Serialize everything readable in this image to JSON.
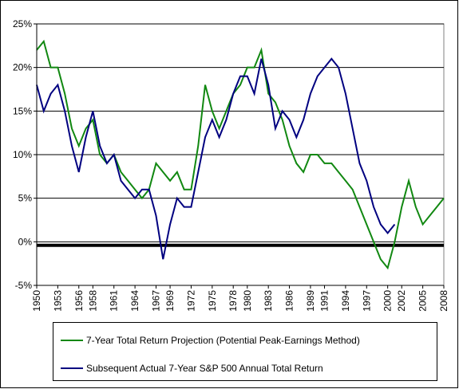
{
  "chart_data": {
    "type": "line",
    "x": [
      1950,
      1951,
      1952,
      1953,
      1954,
      1955,
      1956,
      1957,
      1958,
      1959,
      1960,
      1961,
      1962,
      1963,
      1964,
      1965,
      1966,
      1967,
      1968,
      1969,
      1970,
      1971,
      1972,
      1973,
      1974,
      1975,
      1976,
      1977,
      1978,
      1979,
      1980,
      1981,
      1982,
      1983,
      1984,
      1985,
      1986,
      1987,
      1988,
      1989,
      1990,
      1991,
      1992,
      1993,
      1994,
      1995,
      1996,
      1997,
      1998,
      1999,
      2000,
      2001,
      2002,
      2003,
      2004,
      2005,
      2006,
      2007,
      2008
    ],
    "series": [
      {
        "name": "7-Year Total Return Projection (Potential Peak-Earnings Method)",
        "color": "#118811",
        "values": [
          22,
          23,
          20,
          20,
          17,
          13,
          11,
          13,
          14,
          10,
          9,
          10,
          8,
          7,
          6,
          5,
          6,
          9,
          8,
          7,
          8,
          6,
          6,
          11,
          18,
          15,
          13,
          15,
          17,
          18,
          20,
          20,
          22,
          17,
          16,
          14,
          11,
          9,
          8,
          10,
          10,
          9,
          9,
          8,
          7,
          6,
          4,
          2,
          0,
          -2,
          -3,
          0,
          4,
          7,
          4,
          2,
          3,
          4,
          5
        ]
      },
      {
        "name": "Subsequent Actual 7-Year S&P 500 Annual Total Return",
        "color": "#000080",
        "values": [
          18,
          15,
          17,
          18,
          15,
          11,
          8,
          12,
          15,
          11,
          9,
          10,
          7,
          6,
          5,
          6,
          6,
          3,
          -2,
          2,
          5,
          4,
          4,
          8,
          12,
          14,
          12,
          14,
          17,
          19,
          19,
          17,
          21,
          18,
          13,
          15,
          14,
          12,
          14,
          17,
          19,
          20,
          21,
          20,
          17,
          13,
          9,
          7,
          4,
          2,
          1,
          2,
          null,
          null,
          null,
          null,
          null,
          null,
          null
        ]
      }
    ],
    "xlim": [
      1950,
      2008
    ],
    "xticks": [
      1950,
      1953,
      1956,
      1958,
      1961,
      1964,
      1967,
      1969,
      1972,
      1975,
      1978,
      1980,
      1983,
      1986,
      1989,
      1991,
      1994,
      1997,
      2000,
      2002,
      2005,
      2008
    ],
    "ylim": [
      -5,
      25
    ],
    "yticks": [
      {
        "value": -5,
        "label": "-5%"
      },
      {
        "value": 0,
        "label": "0%"
      },
      {
        "value": 5,
        "label": "5%"
      },
      {
        "value": 10,
        "label": "10%"
      },
      {
        "value": 15,
        "label": "15%"
      },
      {
        "value": 20,
        "label": "20%"
      },
      {
        "value": 25,
        "label": "25%"
      }
    ],
    "grid": true,
    "reference_line": -0.4
  }
}
